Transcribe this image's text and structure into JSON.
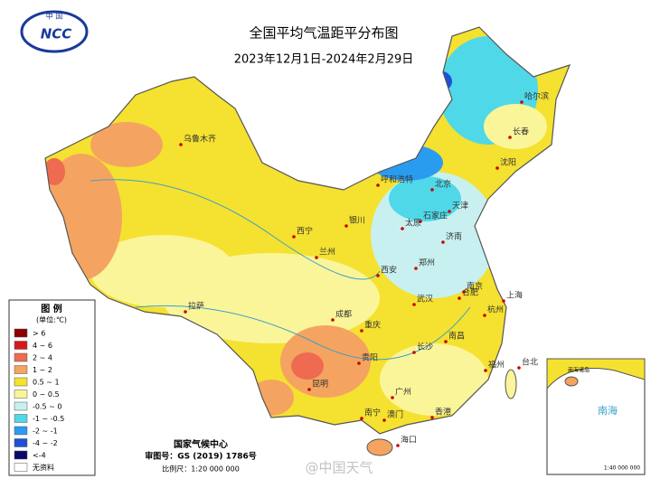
{
  "logo": {
    "top": "中 国",
    "text": "NCC"
  },
  "header": {
    "title": "全国平均气温距平分布图",
    "subtitle": "2023年12月1日-2024年2月29日"
  },
  "legend": {
    "title": "图 例",
    "unit": "(单位:℃)",
    "items": [
      {
        "label": "> 6",
        "color": "#8b0000"
      },
      {
        "label": "4 ~ 6",
        "color": "#d7191c"
      },
      {
        "label": "2 ~ 4",
        "color": "#ee6a50"
      },
      {
        "label": "1 ~ 2",
        "color": "#f4a460"
      },
      {
        "label": "0.5 ~ 1",
        "color": "#f5e130"
      },
      {
        "label": "0 ~ 0.5",
        "color": "#fbf59a"
      },
      {
        "label": "-0.5 ~ 0",
        "color": "#c8f0f0"
      },
      {
        "label": "-1 ~ -0.5",
        "color": "#4fd8e8"
      },
      {
        "label": "-2 ~ -1",
        "color": "#2a9cf0"
      },
      {
        "label": "-4 ~ -2",
        "color": "#1e50d8"
      },
      {
        "label": "<-4",
        "color": "#0a0a6a"
      },
      {
        "label": "无资料",
        "color": "#ffffff"
      }
    ]
  },
  "cities": [
    "乌鲁木齐",
    "拉萨",
    "西宁",
    "兰州",
    "银川",
    "呼和浩特",
    "北京",
    "天津",
    "石家庄",
    "太原",
    "济南",
    "郑州",
    "西安",
    "成都",
    "重庆",
    "贵阳",
    "昆明",
    "南宁",
    "广州",
    "海口",
    "澳门",
    "香港",
    "长沙",
    "武汉",
    "南昌",
    "合肥",
    "南京",
    "上海",
    "杭州",
    "福州",
    "台北",
    "哈尔滨",
    "长春",
    "沈阳"
  ],
  "footer": {
    "agency": "国家气候中心",
    "approval": "审图号：GS (2019) 1786号",
    "scale": "比例尺：1:20 000 000"
  },
  "inset": {
    "title": "南海诸岛",
    "sea": "南海",
    "scale": "1:40 000 000"
  },
  "watermark": "@中国天气"
}
